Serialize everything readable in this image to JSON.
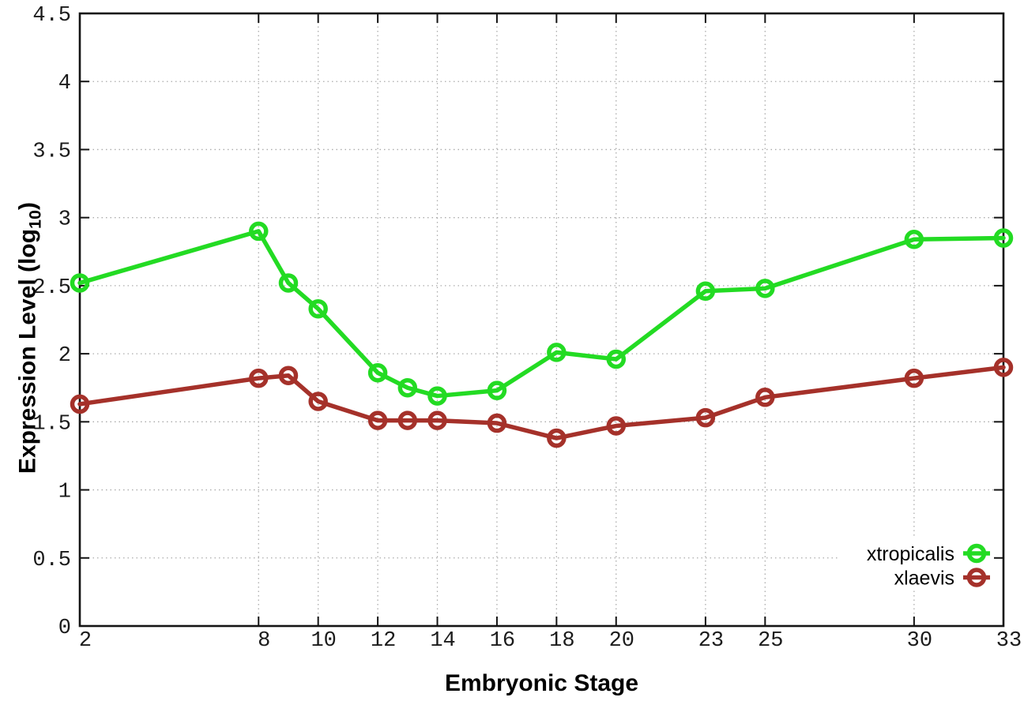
{
  "chart_data": {
    "type": "line",
    "title": "",
    "xlabel": "Embryonic Stage",
    "ylabel": "Expression Level (log10)",
    "ylabel_parts": {
      "before": "Expression Level (log",
      "sub": "10",
      "after": ")"
    },
    "x": [
      2,
      8,
      9,
      10,
      12,
      13,
      14,
      16,
      18,
      20,
      23,
      25,
      30,
      33
    ],
    "series": [
      {
        "name": "xtropicalis",
        "color": "#23db23",
        "values": [
          2.52,
          2.9,
          2.52,
          2.33,
          1.86,
          1.75,
          1.69,
          1.73,
          2.01,
          1.96,
          2.46,
          2.48,
          2.84,
          2.85
        ]
      },
      {
        "name": "xlaevis",
        "color": "#a5312a",
        "values": [
          1.63,
          1.82,
          1.84,
          1.65,
          1.51,
          1.51,
          1.51,
          1.49,
          1.38,
          1.47,
          1.53,
          1.68,
          1.82,
          1.9
        ]
      }
    ],
    "xticks": [
      2,
      8,
      10,
      12,
      14,
      16,
      18,
      20,
      23,
      25,
      30,
      33
    ],
    "xticklabels": [
      "2",
      "8",
      "10",
      "12",
      "14",
      "16",
      "18",
      "20",
      "23",
      "25",
      "30",
      "33"
    ],
    "yticks": [
      0,
      0.5,
      1,
      1.5,
      2,
      2.5,
      3,
      3.5,
      4,
      4.5
    ],
    "yticklabels": [
      "0",
      "0.5",
      "1",
      "1.5",
      "2",
      "2.5",
      "3",
      "3.5",
      "4",
      "4.5"
    ],
    "xlim": [
      2,
      33
    ],
    "ylim": [
      0,
      4.5
    ],
    "grid": true,
    "marker": "open-circle",
    "legend_position": "bottom-right"
  }
}
